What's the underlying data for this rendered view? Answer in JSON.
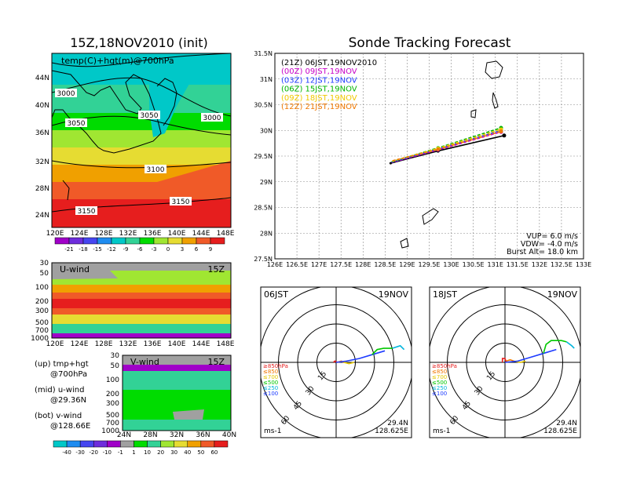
{
  "left_title": "15Z,18NOV2010 (init)",
  "map_panel": {
    "label": "temp(C)+hgt(m)@700hPa",
    "lat_labels": [
      "44N",
      "40N",
      "36N",
      "32N",
      "28N",
      "24N"
    ],
    "lon_labels": [
      "120E",
      "124E",
      "128E",
      "132E",
      "136E",
      "140E",
      "144E",
      "148E"
    ],
    "contour_labels": [
      "3000",
      "3050",
      "3050",
      "3000",
      "3100",
      "3150",
      "3150"
    ]
  },
  "temp_colorbar": {
    "labels": [
      "-21",
      "-18",
      "-15",
      "-12",
      "-9",
      "-6",
      "-3",
      "0",
      "3",
      "6",
      "9"
    ],
    "colors": [
      "#a000c8",
      "#6e2ddc",
      "#4646f0",
      "#1e8cf0",
      "#00c8c8",
      "#32d296",
      "#00dc00",
      "#a0e632",
      "#e6dc32",
      "#f0a000",
      "#f05a28",
      "#e61e1e"
    ]
  },
  "uwind_panel": {
    "label": "U-wind",
    "time": "15Z",
    "p_labels": [
      "30",
      "50",
      "100",
      "200",
      "300",
      "500",
      "700",
      "1000"
    ],
    "lon_labels": [
      "120E",
      "124E",
      "128E",
      "132E",
      "136E",
      "140E",
      "144E",
      "148E"
    ]
  },
  "vwind_panel": {
    "label": "V-wind",
    "time": "15Z",
    "p_labels": [
      "30",
      "50",
      "100",
      "200",
      "300",
      "500",
      "700",
      "1000"
    ],
    "lat_labels": [
      "24N",
      "28N",
      "32N",
      "36N",
      "40N"
    ]
  },
  "side_notes": {
    "up1": "(up) tmp+hgt",
    "up2": "@700hPa",
    "mid1": "(mid) u-wind",
    "mid2": "@29.36N",
    "bot1": "(bot) v-wind",
    "bot2": "@128.66E"
  },
  "wind_colorbar": {
    "labels": [
      "-40",
      "-30",
      "-20",
      "-10",
      "-1",
      "1",
      "10",
      "20",
      "30",
      "40",
      "50",
      "60"
    ],
    "colors": [
      "#00c8c8",
      "#1e8cf0",
      "#4646f0",
      "#6e2ddc",
      "#a000c8",
      "#a0a0a0",
      "#00dc00",
      "#32d296",
      "#a0e632",
      "#e6dc32",
      "#f0a000",
      "#f05a28",
      "#e61e1e"
    ]
  },
  "track_title": "Sonde Tracking Forecast",
  "track_legend": [
    {
      "text": "(21Z) 06JST,19NOV2010",
      "color": "#000000"
    },
    {
      "text": "(00Z) 09JST,19NOV",
      "color": "#c800c8"
    },
    {
      "text": "(03Z) 12JST,19NOV",
      "color": "#1e3cff"
    },
    {
      "text": "(06Z) 15JST,19NOV",
      "color": "#00b400"
    },
    {
      "text": "(09Z) 18JST,19NOV",
      "color": "#f0c800"
    },
    {
      "text": "(12Z) 21JST,19NOV",
      "color": "#f07800"
    }
  ],
  "track_info": [
    "VUP= 6.0 m/s",
    "VDW= -4.0 m/s",
    "Burst Alt= 18.0 km"
  ],
  "chart_data": [
    {
      "type": "line",
      "title": "Sonde Tracking Forecast",
      "xlim": [
        126,
        133
      ],
      "ylim": [
        27.5,
        31.5
      ],
      "x_ticks": [
        "126E",
        "126.5E",
        "127E",
        "127.5E",
        "128E",
        "128.5E",
        "129E",
        "129.5E",
        "130E",
        "130.5E",
        "131E",
        "131.5E",
        "132E",
        "132.5E",
        "133E"
      ],
      "y_ticks": [
        "27.5N",
        "28N",
        "28.5N",
        "29N",
        "29.5N",
        "30N",
        "30.5N",
        "31N",
        "31.5N"
      ],
      "grid": true,
      "legend_position": "top-left",
      "launch_point": {
        "lon": 128.625,
        "lat": 29.36
      },
      "series": [
        {
          "name": "(21Z) 06JST,19NOV2010",
          "color": "#000000",
          "dashed": false,
          "lon": [
            128.62,
            129.7,
            131.2
          ],
          "lat": [
            29.36,
            29.6,
            29.9
          ]
        },
        {
          "name": "(00Z) 09JST,19NOV",
          "color": "#c800c8",
          "dashed": true,
          "lon": [
            128.63,
            129.7,
            131.13
          ],
          "lat": [
            29.37,
            29.62,
            29.97
          ]
        },
        {
          "name": "(03Z) 12JST,19NOV",
          "color": "#1e3cff",
          "dashed": true,
          "lon": [
            128.64,
            129.7,
            131.13
          ],
          "lat": [
            29.38,
            29.64,
            30.0
          ]
        },
        {
          "name": "(06Z) 15JST,19NOV",
          "color": "#00b400",
          "dashed": true,
          "lon": [
            128.65,
            129.7,
            131.13
          ],
          "lat": [
            29.39,
            29.66,
            30.05
          ]
        },
        {
          "name": "(09Z) 18JST,19NOV",
          "color": "#f0c800",
          "dashed": true,
          "lon": [
            128.66,
            129.7,
            131.13
          ],
          "lat": [
            29.4,
            29.65,
            30.02
          ]
        },
        {
          "name": "(12Z) 21JST,19NOV",
          "color": "#f07800",
          "dashed": true,
          "lon": [
            128.67,
            129.7,
            131.13
          ],
          "lat": [
            29.41,
            29.63,
            29.98
          ]
        }
      ]
    }
  ],
  "hodographs": [
    {
      "time": "06JST",
      "date": "19NOV",
      "ring_labels": [
        "15",
        "30",
        "45",
        "60"
      ],
      "unit": "ms-1",
      "lat": "29.4N",
      "lon": "128.625E",
      "levels": [
        {
          "text": "≥850hPa",
          "color": "#e61e1e"
        },
        {
          "text": "≤850",
          "color": "#f07800"
        },
        {
          "text": "≤700",
          "color": "#e6c800"
        },
        {
          "text": "≤500",
          "color": "#00c800"
        },
        {
          "text": "≤250",
          "color": "#00b4dc"
        },
        {
          "text": "≤100",
          "color": "#1e3cff"
        }
      ],
      "segments": [
        {
          "color": "#e61e1e",
          "u": [
            -2,
            -1,
            1
          ],
          "v": [
            0,
            1,
            0
          ]
        },
        {
          "color": "#f07800",
          "u": [
            1,
            4,
            6
          ],
          "v": [
            0,
            1,
            0
          ]
        },
        {
          "color": "#e6c800",
          "u": [
            6,
            10,
            14
          ],
          "v": [
            0,
            -1,
            0
          ]
        },
        {
          "color": "#1e3cff",
          "u": [
            0,
            8,
            18,
            28,
            38
          ],
          "v": [
            0,
            1,
            3,
            6,
            9
          ]
        },
        {
          "color": "#00c800",
          "u": [
            28,
            32,
            37,
            44
          ],
          "v": [
            6,
            10,
            11,
            11
          ]
        },
        {
          "color": "#00b4dc",
          "u": [
            44,
            50,
            53
          ],
          "v": [
            11,
            13,
            10
          ]
        }
      ]
    },
    {
      "time": "18JST",
      "date": "19NOV",
      "ring_labels": [
        "15",
        "30",
        "45",
        "60"
      ],
      "unit": "ms-1",
      "lat": "29.4N",
      "lon": "128.625E",
      "levels": [
        {
          "text": "≥850hPa",
          "color": "#e61e1e"
        },
        {
          "text": "≤850",
          "color": "#f07800"
        },
        {
          "text": "≤700",
          "color": "#e6c800"
        },
        {
          "text": "≤500",
          "color": "#00c800"
        },
        {
          "text": "≤250",
          "color": "#00b4dc"
        },
        {
          "text": "≤100",
          "color": "#1e3cff"
        }
      ],
      "segments": [
        {
          "color": "#e61e1e",
          "u": [
            -2,
            -2,
            0,
            1
          ],
          "v": [
            0,
            3,
            3,
            0
          ]
        },
        {
          "color": "#f07800",
          "u": [
            1,
            4,
            7
          ],
          "v": [
            1,
            2,
            1
          ]
        },
        {
          "color": "#e6c800",
          "u": [
            7,
            12,
            16
          ],
          "v": [
            1,
            0,
            1
          ]
        },
        {
          "color": "#1e3cff",
          "u": [
            0,
            10,
            20,
            30,
            40
          ],
          "v": [
            0,
            1,
            4,
            7,
            10
          ]
        },
        {
          "color": "#00c800",
          "u": [
            30,
            32,
            36,
            44,
            48
          ],
          "v": [
            7,
            14,
            17,
            17,
            16
          ]
        },
        {
          "color": "#00b4dc",
          "u": [
            48,
            52,
            54
          ],
          "v": [
            16,
            13,
            11
          ]
        }
      ]
    }
  ]
}
